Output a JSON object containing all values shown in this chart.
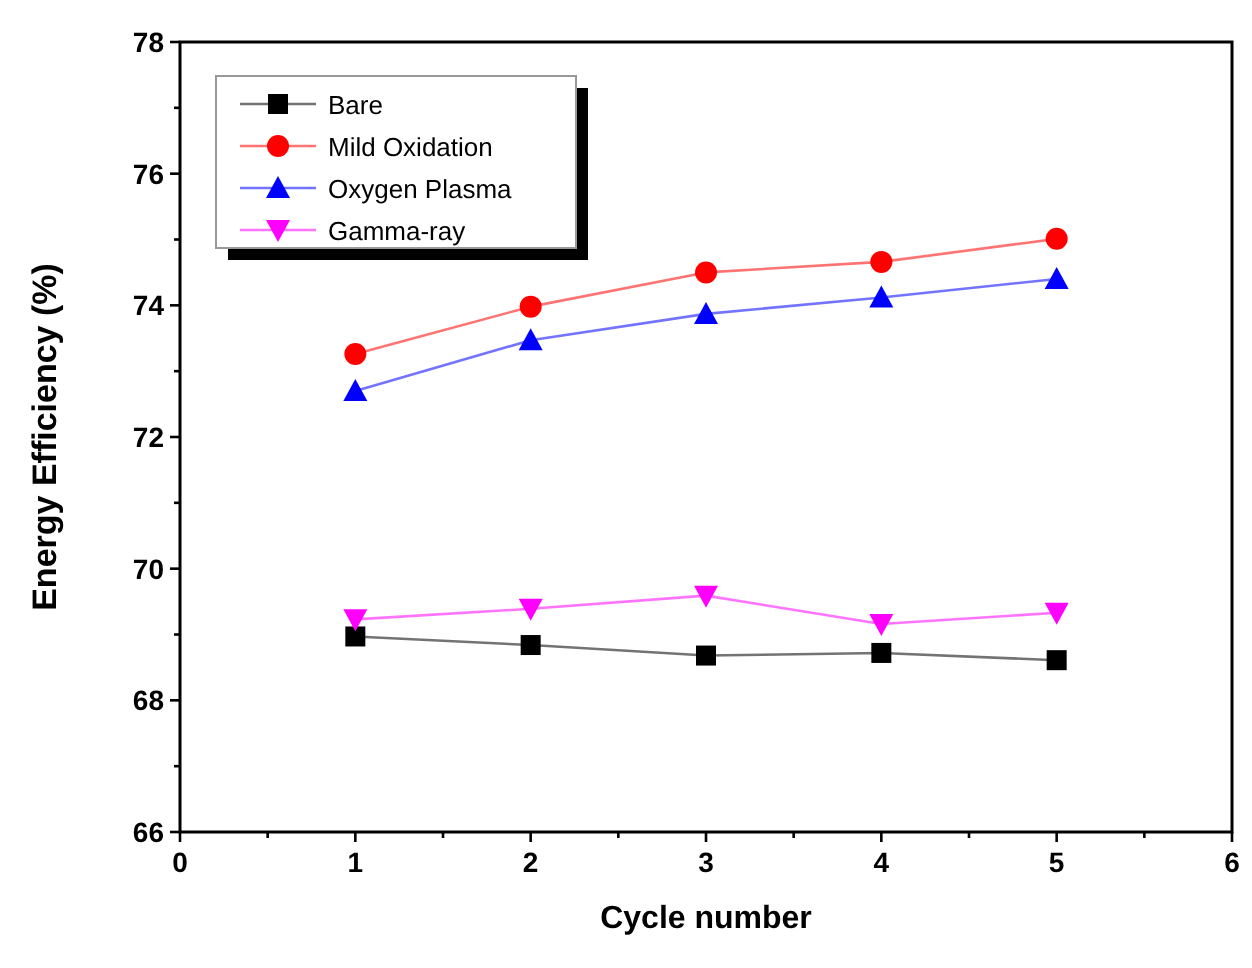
{
  "chart_data": {
    "type": "line",
    "xlabel": "Cycle number",
    "ylabel": "Energy Efficiency (%)",
    "x": [
      1,
      2,
      3,
      4,
      5
    ],
    "xlim": [
      0,
      6
    ],
    "xticks": [
      0,
      {
        "value": 0.5,
        "label": null
      },
      1,
      {
        "value": 1.5,
        "label": null
      },
      2,
      {
        "value": 2.5,
        "label": null
      },
      3,
      {
        "value": 3.5,
        "label": null
      },
      4,
      {
        "value": 4.5,
        "label": null
      },
      5,
      {
        "value": 5.5,
        "label": null
      },
      6
    ],
    "ylim": [
      66,
      78
    ],
    "yticks": [
      66,
      {
        "value": 67,
        "label": null
      },
      68,
      {
        "value": 69,
        "label": null
      },
      70,
      {
        "value": 71,
        "label": null
      },
      72,
      {
        "value": 73,
        "label": null
      },
      74,
      {
        "value": 75,
        "label": null
      },
      76,
      {
        "value": 77,
        "label": null
      },
      78
    ],
    "grid": false,
    "legend": "top left",
    "series": [
      {
        "name": "Bare",
        "color": "#000000",
        "marker": "square",
        "values": [
          68.97,
          68.84,
          68.68,
          68.72,
          68.61
        ]
      },
      {
        "name": "Mild Oxidation",
        "color": "#ff0000",
        "marker": "circle",
        "values": [
          73.26,
          73.98,
          74.5,
          74.66,
          75.01
        ]
      },
      {
        "name": "Oxygen Plasma",
        "color": "#0000ff",
        "marker": "triangle",
        "values": [
          72.7,
          73.47,
          73.87,
          74.12,
          74.4
        ]
      },
      {
        "name": "Gamma-ray",
        "color": "#ff00ff",
        "marker": "triangle-down",
        "values": [
          69.23,
          69.39,
          69.59,
          69.16,
          69.33
        ]
      }
    ]
  }
}
